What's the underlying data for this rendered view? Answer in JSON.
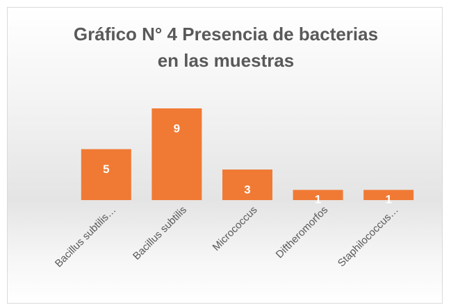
{
  "chart_data": {
    "type": "bar",
    "title": "Gráfico N° 4 Presencia de bacterias en las muestras",
    "categories": [
      "Bacillus subtilis…",
      "Bacillus subtilis",
      "Micrococcus",
      "Diftheromorfos",
      "Staphilococcus…"
    ],
    "values": [
      5,
      9,
      3,
      1,
      1
    ],
    "color": "#f07a34",
    "ylim": [
      0,
      9
    ],
    "grid": false
  }
}
